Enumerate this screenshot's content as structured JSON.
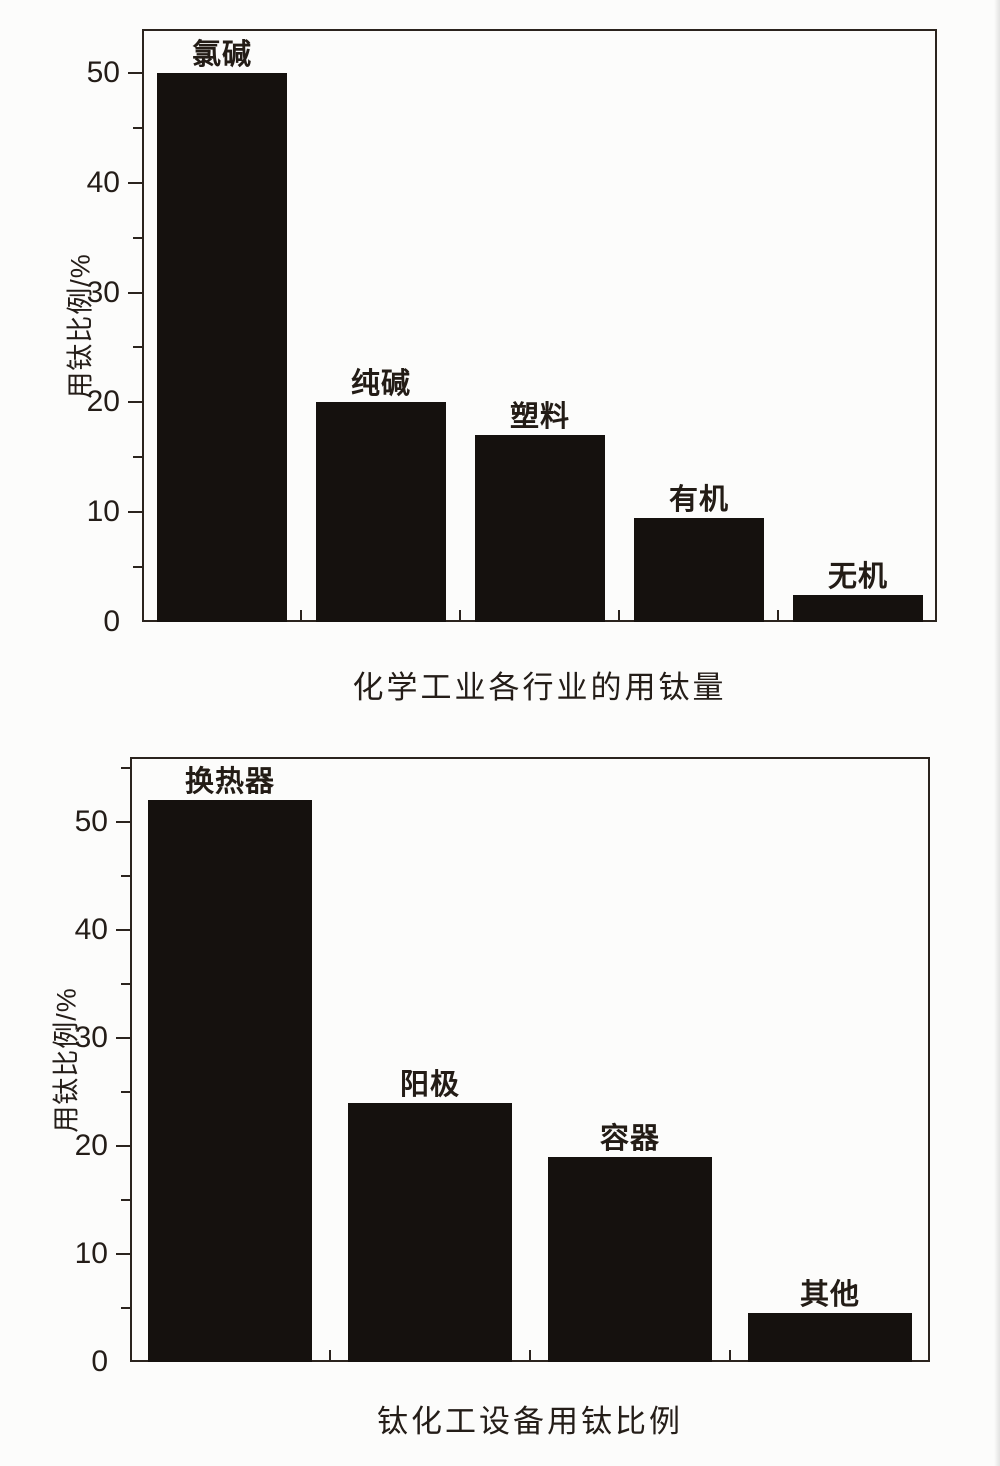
{
  "page_background": "#fcfcfb",
  "ink_color": "#241d18",
  "chart_data": [
    {
      "type": "bar",
      "title": "化学工业各行业的用钛量",
      "ylabel": "用钛比例/%",
      "xlabel": "",
      "categories": [
        "氯碱",
        "纯碱",
        "塑料",
        "有机",
        "无机"
      ],
      "values": [
        50,
        20,
        17,
        9.5,
        2.5
      ],
      "yticks": [
        0,
        10,
        20,
        30,
        40,
        50
      ],
      "minor_tick_step": 5,
      "ylim": [
        0,
        54
      ],
      "bar_color": "#15110e",
      "grid": false,
      "legend_position": "none",
      "value_labels": "category names above bars"
    },
    {
      "type": "bar",
      "title": "钛化工设备用钛比例",
      "ylabel": "用钛比例/%",
      "xlabel": "",
      "categories": [
        "换热器",
        "阳极",
        "容器",
        "其他"
      ],
      "values": [
        52,
        24,
        19,
        4.5
      ],
      "yticks": [
        0,
        10,
        20,
        30,
        40,
        50
      ],
      "minor_tick_step": 5,
      "ylim": [
        0,
        56
      ],
      "bar_color": "#15110e",
      "grid": false,
      "legend_position": "none",
      "value_labels": "category names above bars"
    }
  ]
}
